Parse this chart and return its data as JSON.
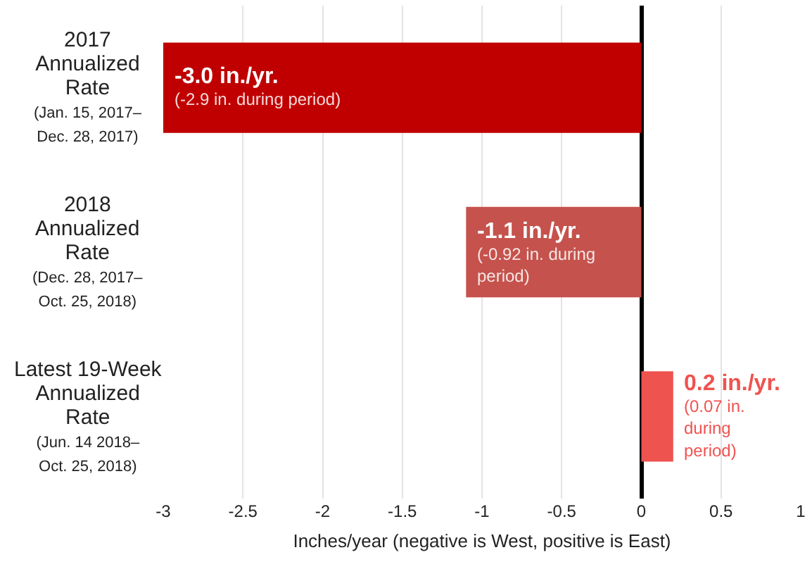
{
  "chart_data": {
    "type": "bar",
    "orientation": "horizontal",
    "categories": [
      "2017\nAnnualized\nRate\n(Jan. 15, 2017–\nDec. 28, 2017)",
      "2018\nAnnualized\nRate\n(Dec. 28, 2017–\nOct. 25, 2018)",
      "Latest 19-Week\nAnnualized\nRate\n(Jun. 14 2018–\nOct. 25, 2018)"
    ],
    "values": [
      -3.0,
      -1.1,
      0.2
    ],
    "colors": [
      "#c00000",
      "#c5524c",
      "#ef5350"
    ],
    "value_labels": [
      "-3.0 in./yr.\n(-2.9 in. during period)",
      "-1.1 in./yr.\n(-0.92 in. during\nperiod)",
      "0.2 in./yr.\n(0.07 in.\nduring\nperiod)"
    ],
    "xlabel": "Inches/year (negative is West, positive is East)",
    "xlim": [
      -3,
      1
    ],
    "xticks": [
      -3,
      -2.5,
      -2,
      -1.5,
      -1,
      -0.5,
      0,
      0.5,
      1
    ],
    "grid": "x"
  }
}
